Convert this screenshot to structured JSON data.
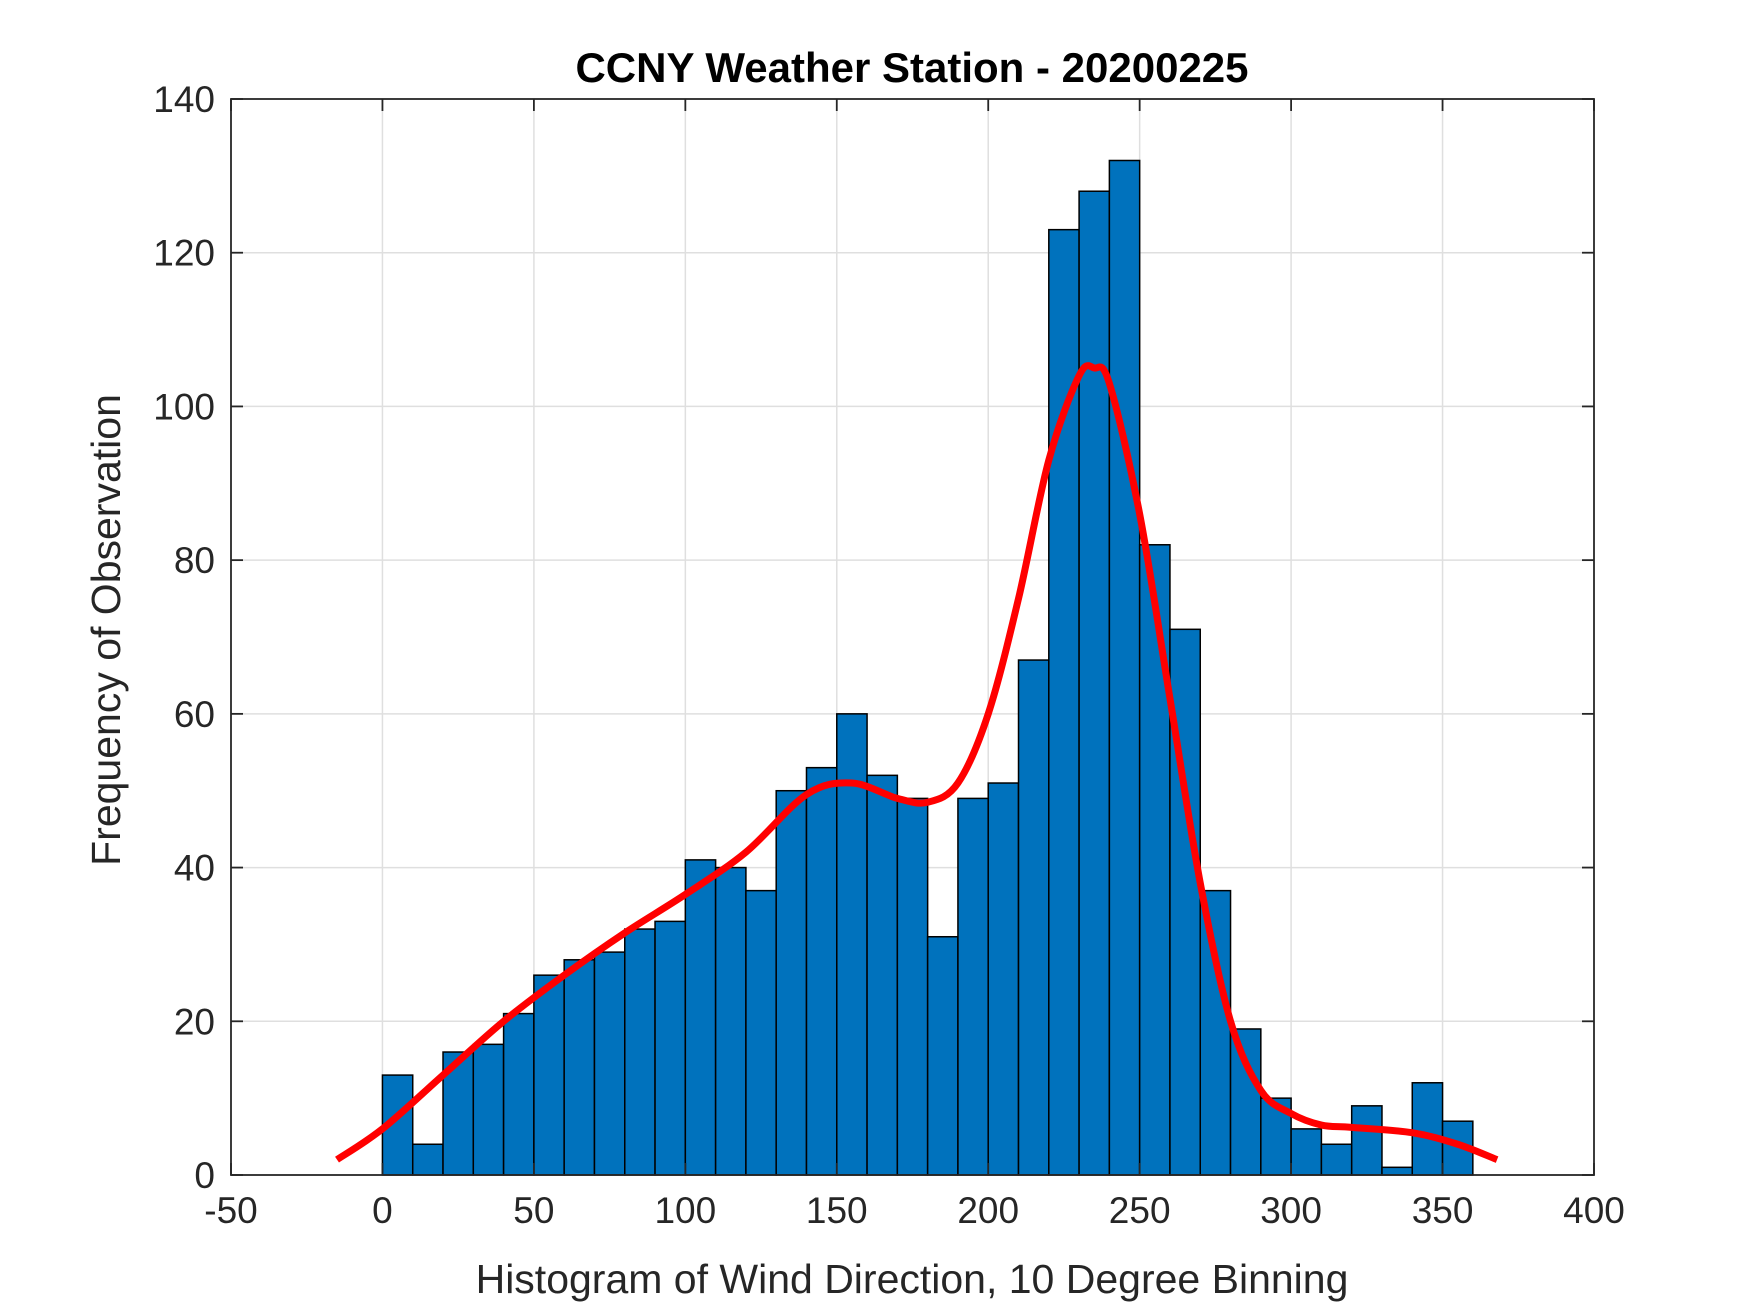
{
  "chart_data": {
    "type": "bar",
    "title": "CCNY Weather Station - 20200225",
    "xlabel": "Histogram of Wind Direction, 10 Degree Binning",
    "ylabel": "Frequency of Observation",
    "xlim": [
      -50,
      400
    ],
    "ylim": [
      0,
      140
    ],
    "xticks": [
      -50,
      0,
      50,
      100,
      150,
      200,
      250,
      300,
      350,
      400
    ],
    "yticks": [
      0,
      20,
      40,
      60,
      80,
      100,
      120,
      140
    ],
    "grid": true,
    "legend": "none",
    "bin_width": 10,
    "bins": {
      "start": [
        0,
        10,
        20,
        30,
        40,
        50,
        60,
        70,
        80,
        90,
        100,
        110,
        120,
        130,
        140,
        150,
        160,
        170,
        180,
        190,
        200,
        210,
        220,
        230,
        240,
        250,
        260,
        270,
        280,
        290,
        300,
        310,
        320,
        330,
        340,
        350
      ],
      "counts": [
        13,
        4,
        16,
        17,
        21,
        26,
        28,
        29,
        32,
        33,
        41,
        40,
        37,
        50,
        53,
        60,
        52,
        49,
        31,
        49,
        51,
        67,
        123,
        128,
        132,
        82,
        71,
        37,
        19,
        10,
        6,
        4,
        9,
        1,
        12,
        7
      ]
    },
    "fit_curve": {
      "x": [
        -15,
        0,
        20,
        40,
        60,
        80,
        100,
        120,
        140,
        155,
        170,
        180,
        190,
        200,
        210,
        220,
        230,
        235,
        240,
        250,
        260,
        270,
        280,
        290,
        300,
        310,
        320,
        340,
        355,
        368
      ],
      "y": [
        2,
        6,
        13,
        20,
        26,
        31.5,
        36.5,
        42,
        49.5,
        51,
        49,
        48.5,
        51,
        60,
        75,
        93,
        104,
        105,
        103,
        86,
        62,
        38,
        20,
        11,
        8,
        6.5,
        6.2,
        5.5,
        4,
        2
      ]
    },
    "colors": {
      "bar": "#0072BD",
      "bar_edge": "#000000",
      "curve": "#FF0000",
      "grid": "#DFDFDF",
      "axis": "#262626"
    }
  }
}
